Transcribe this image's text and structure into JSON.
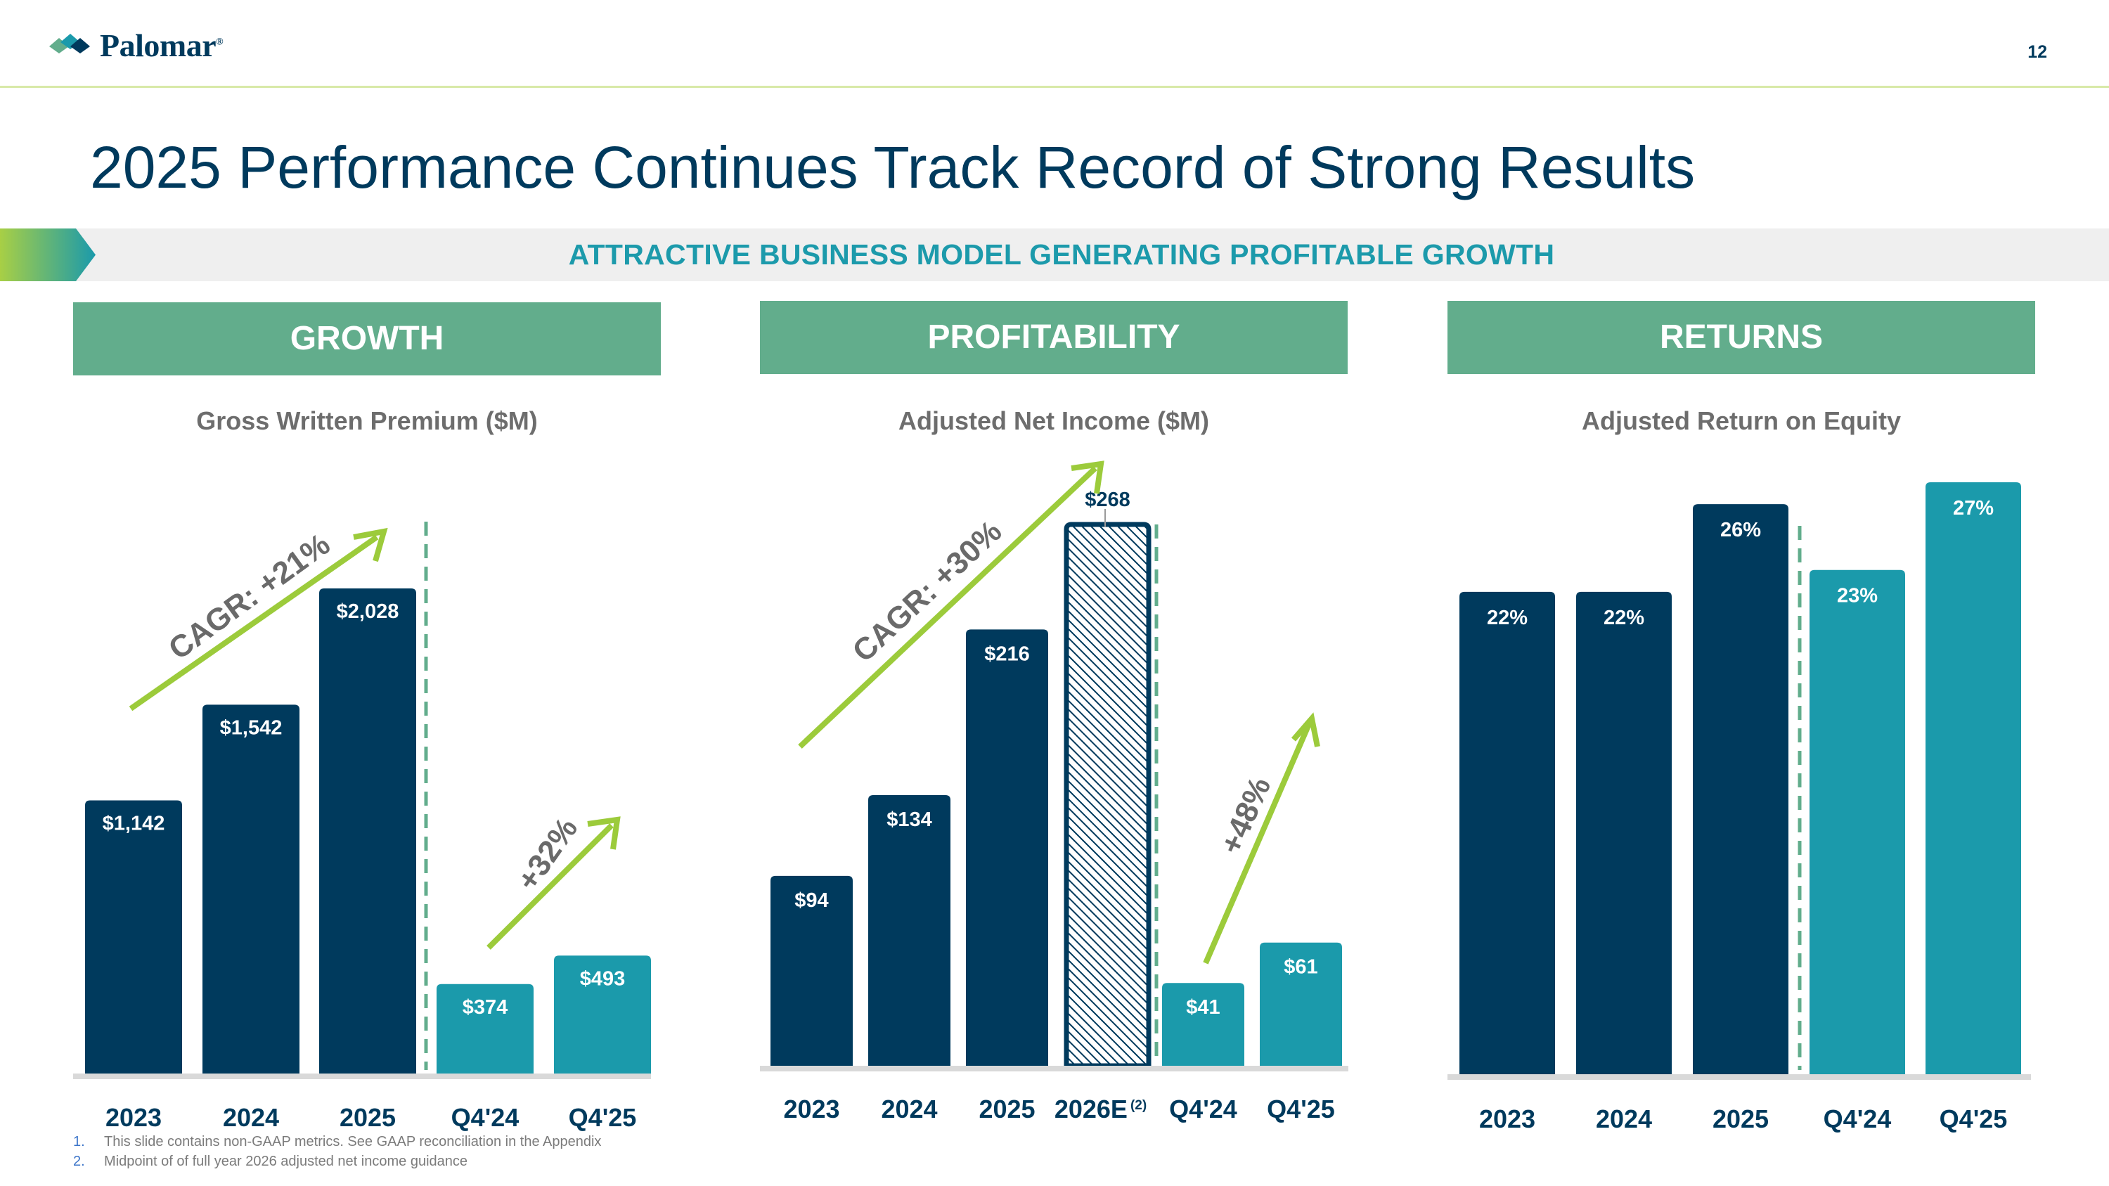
{
  "header": {
    "logo_text": "Palomar",
    "logo_mark": "®",
    "page_number": "12"
  },
  "title": "2025 Performance Continues Track Record of Strong Results",
  "banner": "ATTRACTIVE BUSINESS MODEL GENERATING PROFITABLE GROWTH",
  "panels": {
    "growth": "GROWTH",
    "profitability": "PROFITABILITY",
    "returns": "RETURNS"
  },
  "colors": {
    "navy": "#003a5d",
    "teal": "#1b9aab",
    "green_header": "#62ad8c",
    "arrow_green": "#9ccb3b"
  },
  "chart_data": [
    {
      "type": "bar",
      "title": "Gross Written Premium ($M)",
      "categories": [
        "2023",
        "2024",
        "2025",
        "Q4'24",
        "Q4'25"
      ],
      "values": [
        1142,
        1542,
        2028,
        374,
        493
      ],
      "labels": [
        "$1,142",
        "$1,542",
        "$2,028",
        "$374",
        "$493"
      ],
      "bar_colors": [
        "#003a5d",
        "#003a5d",
        "#003a5d",
        "#1b9aab",
        "#1b9aab"
      ],
      "annotations": [
        "CAGR: +21%",
        "+32%"
      ]
    },
    {
      "type": "bar",
      "title": "Adjusted Net Income ($M)",
      "categories": [
        "2023",
        "2024",
        "2025",
        "2026E",
        "Q4'24",
        "Q4'25"
      ],
      "category_note": "(2)",
      "values": [
        94,
        134,
        216,
        268,
        41,
        61
      ],
      "labels": [
        "$94",
        "$134",
        "$216",
        "$268",
        "$41",
        "$61"
      ],
      "bar_colors": [
        "#003a5d",
        "#003a5d",
        "#003a5d",
        "hatched",
        "#1b9aab",
        "#1b9aab"
      ],
      "annotations": [
        "CAGR: +30%",
        "+48%"
      ]
    },
    {
      "type": "bar",
      "title": "Adjusted Return on Equity",
      "categories": [
        "2023",
        "2024",
        "2025",
        "Q4'24",
        "Q4'25"
      ],
      "values": [
        22,
        22,
        26,
        23,
        27
      ],
      "labels": [
        "22%",
        "22%",
        "26%",
        "23%",
        "27%"
      ],
      "bar_colors": [
        "#003a5d",
        "#003a5d",
        "#003a5d",
        "#1b9aab",
        "#1b9aab"
      ]
    }
  ],
  "footnotes": [
    {
      "num": "1.",
      "text": "This slide contains non-GAAP metrics. See GAAP reconciliation in the Appendix"
    },
    {
      "num": "2.",
      "text": "Midpoint of of full year 2026 adjusted net income guidance"
    }
  ]
}
